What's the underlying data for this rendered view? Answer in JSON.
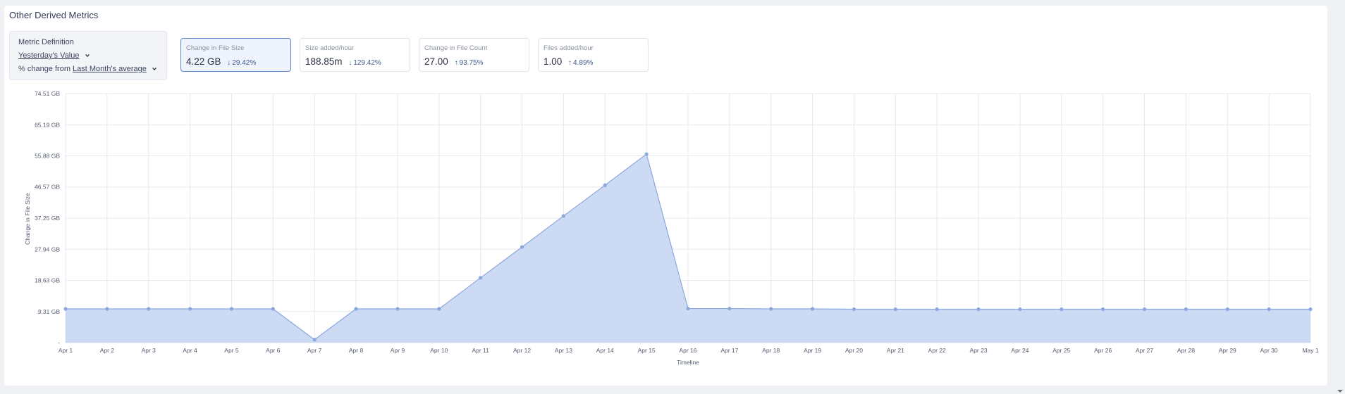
{
  "panel": {
    "title": "Other Derived Metrics"
  },
  "definition": {
    "title": "Metric Definition",
    "value_option": "Yesterday's Value",
    "change_prefix": "% change from",
    "change_option": "Last Month's average"
  },
  "kpis": [
    {
      "label": "Change in File Size",
      "value": "4.22 GB",
      "delta": "29.42%",
      "direction": "down",
      "selected": true
    },
    {
      "label": "Size added/hour",
      "value": "188.85m",
      "delta": "129.42%",
      "direction": "down",
      "selected": false
    },
    {
      "label": "Change in File Count",
      "value": "27.00",
      "delta": "93.75%",
      "direction": "up",
      "selected": false
    },
    {
      "label": "Files added/hour",
      "value": "1.00",
      "delta": "4.89%",
      "direction": "up",
      "selected": false
    }
  ],
  "colors": {
    "area": "#c9d8f3",
    "line": "#8ba8de",
    "grid": "#e6e8ee",
    "accent": "#5b82c9"
  },
  "chart_data": {
    "type": "area",
    "title": "",
    "xlabel": "Timeline",
    "ylabel": "Change in File Size",
    "ylim": [
      0,
      74.51
    ],
    "y_tick_values": [
      0,
      9.31,
      18.63,
      27.94,
      37.25,
      46.57,
      55.88,
      65.19,
      74.51
    ],
    "y_tick_labels": [
      "-",
      "9.31 GB",
      "18.63 GB",
      "27.94 GB",
      "37.25 GB",
      "46.57 GB",
      "55.88 GB",
      "65.19 GB",
      "74.51 GB"
    ],
    "grid": true,
    "categories": [
      "Apr 1",
      "Apr 2",
      "Apr 3",
      "Apr 4",
      "Apr 5",
      "Apr 6",
      "Apr 7",
      "Apr 8",
      "Apr 9",
      "Apr 10",
      "Apr 11",
      "Apr 12",
      "Apr 13",
      "Apr 14",
      "Apr 15",
      "Apr 16",
      "Apr 17",
      "Apr 18",
      "Apr 19",
      "Apr 20",
      "Apr 21",
      "Apr 22",
      "Apr 23",
      "Apr 24",
      "Apr 25",
      "Apr 26",
      "Apr 27",
      "Apr 28",
      "Apr 29",
      "Apr 30",
      "May 1"
    ],
    "series": [
      {
        "values": [
          10.1,
          10.1,
          10.1,
          10.1,
          10.1,
          10.1,
          0.9,
          10.1,
          10.1,
          10.1,
          19.4,
          28.6,
          37.9,
          47.1,
          56.4,
          10.2,
          10.2,
          10.1,
          10.1,
          10.0,
          10.0,
          10.0,
          10.0,
          10.0,
          10.0,
          10.0,
          10.0,
          10.0,
          10.0,
          10.0,
          10.0
        ]
      }
    ]
  }
}
